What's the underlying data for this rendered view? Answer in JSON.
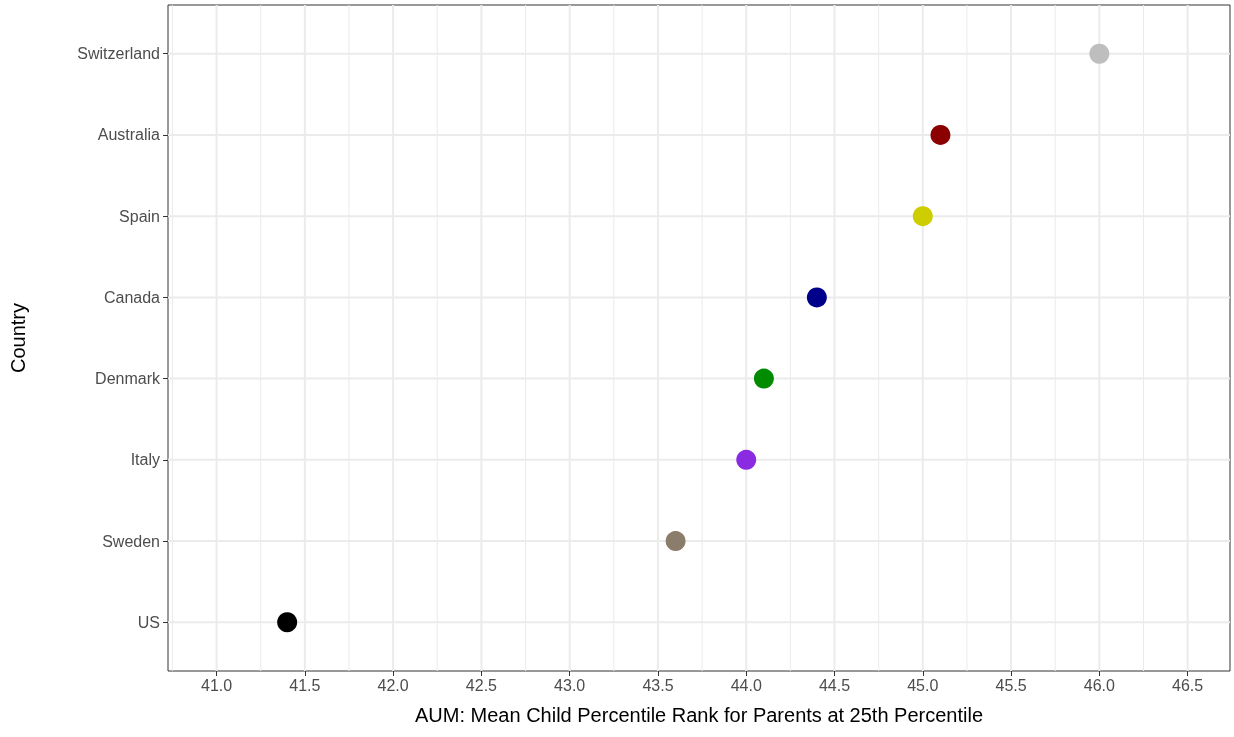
{
  "chart_data": {
    "type": "scatter",
    "orientation": "horizontal",
    "xlabel": "AUM: Mean Child Percentile Rank for Parents at 25th Percentile",
    "ylabel": "Country",
    "categories": [
      "Switzerland",
      "Australia",
      "Spain",
      "Canada",
      "Denmark",
      "Italy",
      "Sweden",
      "US"
    ],
    "values": [
      46.0,
      45.1,
      45.0,
      44.4,
      44.1,
      44.0,
      43.6,
      41.4
    ],
    "colors": [
      "#bebebe",
      "#8b0000",
      "#cdcd00",
      "#00008b",
      "#008b00",
      "#8a2be2",
      "#8b7d6b",
      "#000000"
    ],
    "xlim": [
      40.725,
      46.74
    ],
    "xticks": [
      {
        "value": 41,
        "label": "41.0"
      },
      {
        "value": 41.5,
        "label": "41.5"
      },
      {
        "value": 42,
        "label": "42.0"
      },
      {
        "value": 42.5,
        "label": "42.5"
      },
      {
        "value": 43,
        "label": "43.0"
      },
      {
        "value": 43.5,
        "label": "43.5"
      },
      {
        "value": 44,
        "label": "44.0"
      },
      {
        "value": 44.5,
        "label": "44.5"
      },
      {
        "value": 45,
        "label": "45.0"
      },
      {
        "value": 45.5,
        "label": "45.5"
      },
      {
        "value": 46,
        "label": "46.0"
      },
      {
        "value": 46.5,
        "label": "46.5"
      }
    ],
    "grid": true,
    "marker": "circle"
  }
}
